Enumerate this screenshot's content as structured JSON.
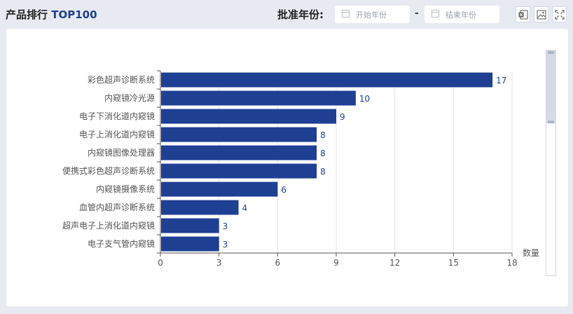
{
  "header": {
    "title_text": "产品排行 ",
    "title_accent": "TOP100",
    "date_label": "批准年份:",
    "start_placeholder": "开始年份",
    "end_placeholder": "结束年份",
    "range_separator": "-"
  },
  "toolbar": {
    "icons": [
      "excel-export-icon",
      "image-export-icon",
      "fullscreen-icon"
    ]
  },
  "colors": {
    "bar": "#1f3f93",
    "accent": "#1f3f93",
    "background": "#e8eaf2"
  },
  "chart_data": {
    "type": "bar",
    "orientation": "horizontal",
    "categories": [
      "彩色超声诊断系统",
      "内窥镜冷光源",
      "电子下消化道内窥镜",
      "电子上消化道内窥镜",
      "内窥镜图像处理器",
      "便携式彩色超声诊断系统",
      "内窥镜摄像系统",
      "血管内超声诊断系统",
      "超声电子上消化道内窥镜",
      "电子支气管内窥镜"
    ],
    "values": [
      17,
      10,
      9,
      8,
      8,
      8,
      6,
      4,
      3,
      3
    ],
    "xlabel": "数量",
    "xlim": [
      0,
      18
    ],
    "xticks": [
      0,
      3,
      6,
      9,
      12,
      15,
      18
    ],
    "grid": true,
    "data_labels": true
  }
}
